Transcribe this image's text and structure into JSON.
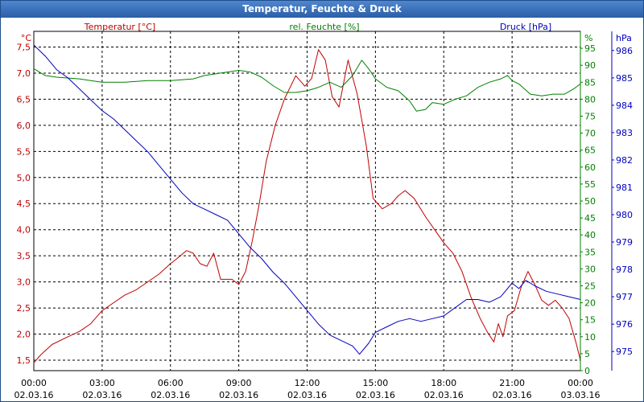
{
  "window": {
    "title": "Temperatur, Feuchte & Druck"
  },
  "colors": {
    "temperature": "#c00000",
    "humidity": "#008000",
    "pressure": "#0000c0",
    "grid": "#000000",
    "titlebar": "#2b5fa6"
  },
  "chart_data": {
    "type": "line",
    "title": "Temperatur, Feuchte & Druck",
    "grid": true,
    "x": {
      "ticks": [
        {
          "time": "00:00",
          "date": "02.03.16"
        },
        {
          "time": "03:00",
          "date": "02.03.16"
        },
        {
          "time": "06:00",
          "date": "02.03.16"
        },
        {
          "time": "09:00",
          "date": "02.03.16"
        },
        {
          "time": "12:00",
          "date": "02.03.16"
        },
        {
          "time": "15:00",
          "date": "02.03.16"
        },
        {
          "time": "18:00",
          "date": "02.03.16"
        },
        {
          "time": "21:00",
          "date": "02.03.16"
        },
        {
          "time": "00:00",
          "date": "03.03.16"
        }
      ],
      "range_hours": [
        0,
        24
      ]
    },
    "axes": {
      "temperature": {
        "unit": "°C",
        "label": "Temperatur [°C]",
        "min": 1.3,
        "max": 7.8,
        "ticks": [
          "1,5",
          "2,0",
          "2,5",
          "3,0",
          "3,5",
          "4,0",
          "4,5",
          "5,0",
          "5,5",
          "6,0",
          "6,5",
          "7,0",
          "7,5"
        ],
        "tick_values": [
          1.5,
          2.0,
          2.5,
          3.0,
          3.5,
          4.0,
          4.5,
          5.0,
          5.5,
          6.0,
          6.5,
          7.0,
          7.5
        ]
      },
      "humidity": {
        "unit": "%",
        "label": "rel. Feuchte [%]",
        "min": 0,
        "max": 100,
        "ticks": [
          "0",
          "5",
          "10",
          "15",
          "20",
          "25",
          "30",
          "35",
          "40",
          "45",
          "50",
          "55",
          "60",
          "65",
          "70",
          "75",
          "80",
          "85",
          "90",
          "95"
        ],
        "tick_values": [
          0,
          5,
          10,
          15,
          20,
          25,
          30,
          35,
          40,
          45,
          50,
          55,
          60,
          65,
          70,
          75,
          80,
          85,
          90,
          95
        ]
      },
      "pressure": {
        "unit": "hPa",
        "label": "Druck [hPa]",
        "min": 974.3,
        "max": 986.7,
        "ticks": [
          "975",
          "976",
          "977",
          "978",
          "979",
          "980",
          "981",
          "982",
          "983",
          "984",
          "985",
          "986"
        ],
        "tick_values": [
          975,
          976,
          977,
          978,
          979,
          980,
          981,
          982,
          983,
          984,
          985,
          986
        ]
      }
    },
    "series": [
      {
        "name": "Temperatur [°C]",
        "axis": "temperature",
        "points": [
          [
            0,
            1.45
          ],
          [
            0.3,
            1.6
          ],
          [
            0.8,
            1.8
          ],
          [
            1.5,
            1.95
          ],
          [
            2.0,
            2.05
          ],
          [
            2.5,
            2.2
          ],
          [
            3.0,
            2.45
          ],
          [
            3.5,
            2.6
          ],
          [
            4.0,
            2.75
          ],
          [
            4.5,
            2.85
          ],
          [
            5.0,
            3.0
          ],
          [
            5.5,
            3.15
          ],
          [
            6.0,
            3.35
          ],
          [
            6.3,
            3.45
          ],
          [
            6.7,
            3.6
          ],
          [
            7.0,
            3.55
          ],
          [
            7.3,
            3.35
          ],
          [
            7.6,
            3.3
          ],
          [
            7.9,
            3.55
          ],
          [
            8.2,
            3.05
          ],
          [
            8.7,
            3.05
          ],
          [
            9.0,
            2.95
          ],
          [
            9.3,
            3.2
          ],
          [
            9.6,
            3.8
          ],
          [
            9.9,
            4.5
          ],
          [
            10.2,
            5.3
          ],
          [
            10.6,
            6.0
          ],
          [
            11.0,
            6.5
          ],
          [
            11.5,
            6.95
          ],
          [
            11.9,
            6.75
          ],
          [
            12.2,
            6.9
          ],
          [
            12.5,
            7.45
          ],
          [
            12.8,
            7.25
          ],
          [
            13.1,
            6.55
          ],
          [
            13.4,
            6.35
          ],
          [
            13.8,
            7.25
          ],
          [
            14.2,
            6.6
          ],
          [
            14.6,
            5.6
          ],
          [
            14.9,
            4.6
          ],
          [
            15.3,
            4.4
          ],
          [
            15.7,
            4.5
          ],
          [
            16.0,
            4.65
          ],
          [
            16.3,
            4.75
          ],
          [
            16.7,
            4.6
          ],
          [
            17.2,
            4.25
          ],
          [
            17.6,
            4.0
          ],
          [
            18.0,
            3.75
          ],
          [
            18.4,
            3.55
          ],
          [
            18.8,
            3.2
          ],
          [
            19.2,
            2.7
          ],
          [
            19.6,
            2.3
          ],
          [
            19.9,
            2.05
          ],
          [
            20.2,
            1.85
          ],
          [
            20.4,
            2.2
          ],
          [
            20.6,
            1.95
          ],
          [
            20.8,
            2.35
          ],
          [
            21.1,
            2.45
          ],
          [
            21.4,
            2.9
          ],
          [
            21.7,
            3.2
          ],
          [
            22.0,
            2.95
          ],
          [
            22.3,
            2.65
          ],
          [
            22.6,
            2.55
          ],
          [
            22.9,
            2.65
          ],
          [
            23.2,
            2.5
          ],
          [
            23.5,
            2.3
          ],
          [
            23.8,
            1.85
          ],
          [
            24.0,
            1.5
          ]
        ]
      },
      {
        "name": "rel. Feuchte [%]",
        "axis": "humidity",
        "points": [
          [
            0,
            89
          ],
          [
            0.5,
            87
          ],
          [
            1.0,
            86.5
          ],
          [
            2.0,
            86
          ],
          [
            2.5,
            85.5
          ],
          [
            3.0,
            85
          ],
          [
            4.0,
            85
          ],
          [
            5.0,
            85.5
          ],
          [
            6.0,
            85.5
          ],
          [
            7.0,
            86
          ],
          [
            7.5,
            87
          ],
          [
            8.0,
            87.5
          ],
          [
            8.5,
            88
          ],
          [
            9.0,
            88.5
          ],
          [
            9.5,
            88
          ],
          [
            10.0,
            86.5
          ],
          [
            10.5,
            84
          ],
          [
            11.0,
            82
          ],
          [
            11.5,
            82
          ],
          [
            12.0,
            82.5
          ],
          [
            12.5,
            83.5
          ],
          [
            13.0,
            85
          ],
          [
            13.5,
            83.5
          ],
          [
            14.0,
            87
          ],
          [
            14.4,
            91.5
          ],
          [
            14.7,
            89
          ],
          [
            15.0,
            86
          ],
          [
            15.5,
            83.5
          ],
          [
            16.0,
            82.5
          ],
          [
            16.5,
            79.5
          ],
          [
            16.8,
            76.5
          ],
          [
            17.2,
            77
          ],
          [
            17.5,
            79
          ],
          [
            18.0,
            78.5
          ],
          [
            18.5,
            80
          ],
          [
            19.0,
            81
          ],
          [
            19.5,
            83.5
          ],
          [
            20.0,
            85
          ],
          [
            20.5,
            86
          ],
          [
            20.8,
            87
          ],
          [
            21.0,
            85.5
          ],
          [
            21.3,
            84.5
          ],
          [
            21.8,
            81.5
          ],
          [
            22.3,
            81
          ],
          [
            22.8,
            81.5
          ],
          [
            23.3,
            81.5
          ],
          [
            23.7,
            83
          ],
          [
            24.0,
            84.5
          ]
        ]
      },
      {
        "name": "Druck [hPa]",
        "axis": "pressure",
        "points": [
          [
            0,
            986.2
          ],
          [
            0.5,
            985.8
          ],
          [
            1.0,
            985.3
          ],
          [
            1.5,
            985.0
          ],
          [
            2.0,
            984.6
          ],
          [
            2.5,
            984.2
          ],
          [
            3.0,
            983.8
          ],
          [
            3.5,
            983.5
          ],
          [
            4.0,
            983.1
          ],
          [
            4.5,
            982.7
          ],
          [
            5.0,
            982.3
          ],
          [
            5.5,
            981.8
          ],
          [
            6.0,
            981.3
          ],
          [
            6.5,
            980.8
          ],
          [
            7.0,
            980.4
          ],
          [
            7.5,
            980.2
          ],
          [
            8.0,
            980.0
          ],
          [
            8.5,
            979.8
          ],
          [
            9.0,
            979.3
          ],
          [
            9.5,
            978.8
          ],
          [
            10.0,
            978.4
          ],
          [
            10.5,
            977.9
          ],
          [
            11.0,
            977.5
          ],
          [
            11.5,
            977.0
          ],
          [
            12.0,
            976.5
          ],
          [
            12.5,
            976.0
          ],
          [
            13.0,
            975.6
          ],
          [
            13.5,
            975.4
          ],
          [
            14.0,
            975.2
          ],
          [
            14.3,
            974.9
          ],
          [
            14.7,
            975.3
          ],
          [
            15.0,
            975.7
          ],
          [
            15.5,
            975.9
          ],
          [
            16.0,
            976.1
          ],
          [
            16.5,
            976.2
          ],
          [
            17.0,
            976.1
          ],
          [
            17.5,
            976.2
          ],
          [
            18.0,
            976.3
          ],
          [
            18.5,
            976.6
          ],
          [
            19.0,
            976.9
          ],
          [
            19.5,
            976.9
          ],
          [
            20.0,
            976.8
          ],
          [
            20.5,
            977.0
          ],
          [
            21.0,
            977.5
          ],
          [
            21.3,
            977.3
          ],
          [
            21.6,
            977.6
          ],
          [
            22.0,
            977.4
          ],
          [
            22.5,
            977.2
          ],
          [
            23.0,
            977.1
          ],
          [
            23.5,
            977.0
          ],
          [
            24.0,
            976.9
          ]
        ]
      }
    ]
  }
}
